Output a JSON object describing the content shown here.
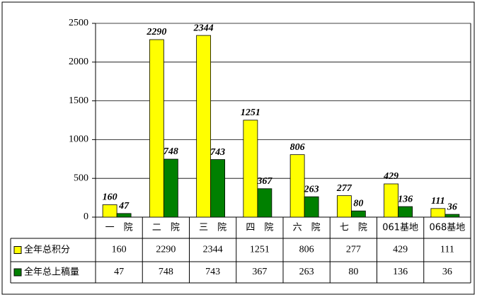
{
  "chart_data": {
    "type": "bar",
    "categories": [
      "一　院",
      "二　院",
      "三　院",
      "四　院",
      "六　院",
      "七　院",
      "061基地",
      "068基地"
    ],
    "series": [
      {
        "name": "全年总积分",
        "color": "#ffff00",
        "values": [
          160,
          2290,
          2344,
          1251,
          806,
          277,
          429,
          111
        ]
      },
      {
        "name": "全年总上稿量",
        "color": "#008000",
        "values": [
          47,
          748,
          743,
          367,
          263,
          80,
          136,
          36
        ]
      }
    ],
    "ylim": [
      0,
      2500
    ],
    "yticks": [
      0,
      500,
      1000,
      1500,
      2000,
      2500
    ],
    "grid": true
  }
}
